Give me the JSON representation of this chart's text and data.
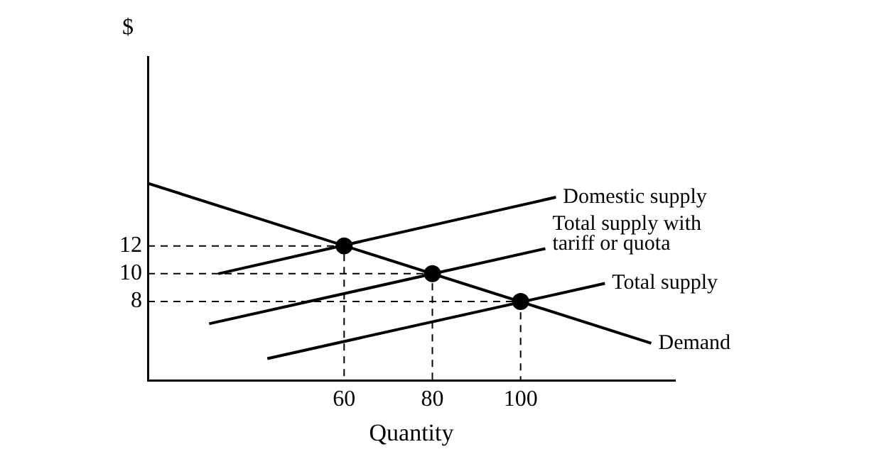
{
  "chart_data": {
    "type": "line",
    "xlabel": "Quantity",
    "ylabel": "$",
    "xlim": [
      15.5,
      135
    ],
    "ylim": [
      2.3,
      25.6
    ],
    "xticks": [
      60,
      80,
      100
    ],
    "yticks": [
      8,
      10,
      12
    ],
    "grid": false,
    "legend": false,
    "marker": "none",
    "series": [
      {
        "name": "Domestic supply",
        "color": "#000000",
        "x": [
          31.5,
          108
        ],
        "values": [
          10,
          15.5
        ]
      },
      {
        "name": "Total supply with tariff or quota",
        "color": "#000000",
        "x": [
          29.4,
          105.6
        ],
        "values": [
          6.4,
          11.8
        ]
      },
      {
        "name": "Total supply",
        "color": "#000000",
        "x": [
          42.6,
          119.1
        ],
        "values": [
          3.9,
          9.3
        ]
      },
      {
        "name": "Demand",
        "color": "#000000",
        "x": [
          15.5,
          129.6
        ],
        "values": [
          16.5,
          5
        ]
      },
      {
        "color": "#000000",
        "line_style": "dashed",
        "x": [
          15.5,
          60,
          60
        ],
        "values": [
          12,
          12,
          2.3
        ]
      },
      {
        "color": "#000000",
        "line_style": "dashed",
        "x": [
          15.5,
          80,
          80
        ],
        "values": [
          10,
          10,
          2.3
        ]
      },
      {
        "color": "#000000",
        "line_style": "dashed",
        "x": [
          15.5,
          100,
          100
        ],
        "values": [
          8,
          8,
          2.3
        ]
      },
      {
        "type": "scatter",
        "marker": "circle",
        "color": "#000000",
        "x": [
          60,
          80,
          100
        ],
        "values": [
          12,
          10,
          8
        ]
      }
    ]
  }
}
